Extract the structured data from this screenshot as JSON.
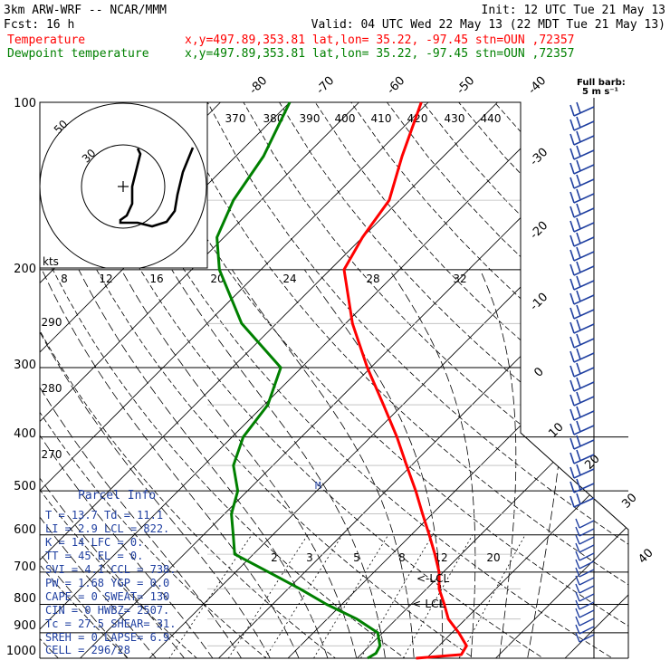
{
  "header": {
    "line1_left": "3km ARW-WRF -- NCAR/MMM",
    "line1_right": "Init: 12 UTC Tue 21 May 13",
    "line2_left": "Fcst:   16 h",
    "line2_right": "Valid: 04 UTC Wed 22 May 13 (22 MDT Tue 21 May 13)",
    "line3_left": "Temperature",
    "line3_right": "x,y=497.89,353.81   lat,lon= 35.22, -97.45  stn=OUN ,72357",
    "line4_left": "Dewpoint temperature",
    "line4_right": "x,y=497.89,353.81   lat,lon= 35.22, -97.45  stn=OUN ,72357",
    "colors": {
      "temperature": "#ff0000",
      "dewpoint": "#008000",
      "text": "#000000",
      "parcel": "#1f3fa0"
    }
  },
  "full_barb": {
    "line1": "Full barb:",
    "line2": "5 m s⁻¹"
  },
  "pressure_labels": [
    "100",
    "200",
    "300",
    "400",
    "500",
    "600",
    "700",
    "800",
    "900",
    "1000"
  ],
  "temp_labels": [
    "-80",
    "-70",
    "-60",
    "-50",
    "-40",
    "-30",
    "-20",
    "-10",
    "0",
    "10",
    "20",
    "30",
    "40"
  ],
  "theta_labels": [
    "370",
    "380",
    "390",
    "400",
    "410",
    "420",
    "430",
    "440"
  ],
  "theta_left_labels": [
    "290",
    "280",
    "270"
  ],
  "hodo_labels": {
    "kts": "kts",
    "speeds": [
      "8",
      "12",
      "16",
      "20",
      "24",
      "28",
      "32"
    ],
    "ring1": "50",
    "ring2": "30"
  },
  "mixing_labels": [
    "2",
    "3",
    "5",
    "8",
    "12",
    "20"
  ],
  "lcl_labels": [
    "<-LCL",
    "<-LCL"
  ],
  "parcel_info": {
    "title": "Parcel Info",
    "marker": "M",
    "rows": [
      "T  =    13.7  Td =  11.1",
      "LI =     2.9  LCL =  822.",
      "K  =      14  LFC =    0.",
      "TT =      45  EL  =    0.",
      "SVI =    4.1  CCL =  738.",
      "PW =    1.68  YGP =   0.0",
      "CAPE =     0  SWEAT=  130",
      "CIN =      0  HWBZ= 2507.",
      "Tc =    27.5  SHEAR=  31.",
      "SREH =     0  LAPSE=  6.9",
      "CELL = 296/28"
    ]
  },
  "chart_data": {
    "type": "line",
    "title": "",
    "y_axis": "Pressure (hPa), log scale",
    "ylim": [
      1000,
      100
    ],
    "x_axis": "Temperature (°C), skewed",
    "xlim_at_1000hPa": [
      -37,
      40
    ],
    "series": [
      {
        "name": "Temperature",
        "pressure": [
          1000,
          985,
          950,
          900,
          850,
          800,
          750,
          700,
          650,
          600,
          550,
          500,
          450,
          400,
          350,
          300,
          250,
          200,
          175,
          150,
          125,
          100
        ],
        "values": [
          18.5,
          24.5,
          24.0,
          21.0,
          17.5,
          14.8,
          11.8,
          9.4,
          6.2,
          2.6,
          -1.4,
          -5.7,
          -10.7,
          -16.2,
          -22.8,
          -30.5,
          -39.0,
          -48.0,
          -50.0,
          -51.5,
          -56.0,
          -61.0
        ]
      },
      {
        "name": "Dewpoint temperature",
        "pressure": [
          1000,
          980,
          950,
          900,
          850,
          800,
          750,
          700,
          650,
          600,
          550,
          500,
          450,
          400,
          350,
          300,
          250,
          200,
          175,
          150,
          125,
          100
        ],
        "values": [
          11.5,
          12.0,
          11.5,
          9.3,
          4.3,
          -2.2,
          -8.3,
          -15.2,
          -22.7,
          -25.7,
          -29.0,
          -31.4,
          -35.7,
          -38.4,
          -39.5,
          -43.0,
          -55.0,
          -66.0,
          -71.0,
          -74.0,
          -76.0,
          -80.0
        ]
      }
    ]
  }
}
